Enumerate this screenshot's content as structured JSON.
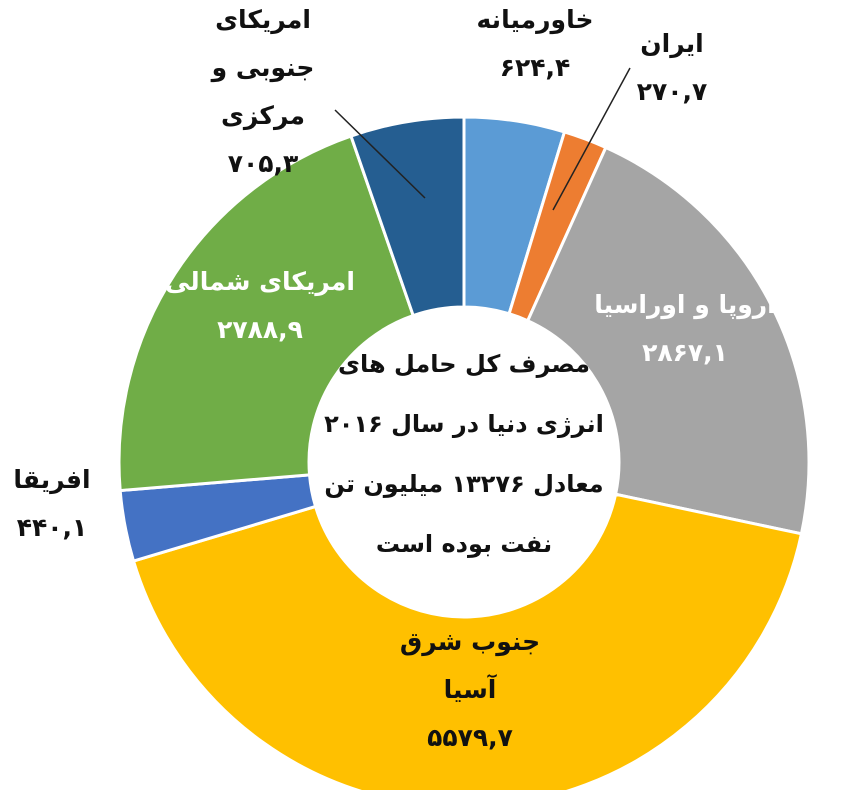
{
  "chart_data": {
    "type": "donut",
    "title": "",
    "center_text": [
      "مصرف کل حامل های",
      "انرژی دنیا در سال ۲۰۱۶",
      "معادل ۱۳۲۷۶ میلیون تن",
      "نفت بوده است"
    ],
    "total": 13276,
    "slices": [
      {
        "label": [
          "خاورمیانه"
        ],
        "value": 624.4,
        "display": "۶۲۴,۴",
        "color": "#5b9bd5",
        "label_color": "#111111"
      },
      {
        "label": [
          "ایران"
        ],
        "value": 270.7,
        "display": "۲۷۰,۷",
        "color": "#ed7d31",
        "label_color": "#111111"
      },
      {
        "label": [
          "اروپا و اوراسیا"
        ],
        "value": 2867.1,
        "display": "۲۸۶۷,۱",
        "color": "#a5a5a5",
        "label_color": "#ffffff"
      },
      {
        "label": [
          "جنوب شرق",
          "آسیا"
        ],
        "value": 5579.7,
        "display": "۵۵۷۹,۷",
        "color": "#ffc000",
        "label_color": "#111111"
      },
      {
        "label": [
          "افریقا"
        ],
        "value": 440.1,
        "display": "۴۴۰,۱",
        "color": "#4472c4",
        "label_color": "#111111"
      },
      {
        "label": [
          "امریکای شمالی"
        ],
        "value": 2788.9,
        "display": "۲۷۸۸,۹",
        "color": "#70ad47",
        "label_color": "#ffffff"
      },
      {
        "label": [
          "امریکای",
          "جنوبی و",
          "مرکزی"
        ],
        "value": 705.3,
        "display": "۷۰۵,۳",
        "color": "#255e91",
        "label_color": "#111111"
      }
    ]
  }
}
